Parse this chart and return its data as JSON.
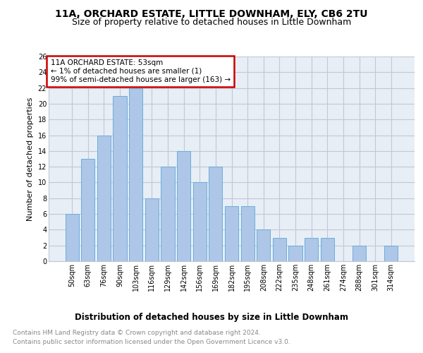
{
  "title": "11A, ORCHARD ESTATE, LITTLE DOWNHAM, ELY, CB6 2TU",
  "subtitle": "Size of property relative to detached houses in Little Downham",
  "xlabel": "Distribution of detached houses by size in Little Downham",
  "ylabel": "Number of detached properties",
  "bar_labels": [
    "50sqm",
    "63sqm",
    "76sqm",
    "90sqm",
    "103sqm",
    "116sqm",
    "129sqm",
    "142sqm",
    "156sqm",
    "169sqm",
    "182sqm",
    "195sqm",
    "208sqm",
    "222sqm",
    "235sqm",
    "248sqm",
    "261sqm",
    "274sqm",
    "288sqm",
    "301sqm",
    "314sqm"
  ],
  "bar_values": [
    6,
    13,
    16,
    21,
    22,
    8,
    12,
    14,
    10,
    12,
    7,
    7,
    4,
    3,
    2,
    3,
    3,
    0,
    2,
    0,
    2
  ],
  "bar_color": "#aec6e8",
  "bar_edge_color": "#6baed6",
  "annotation_box_color": "#cc0000",
  "annotation_text": "11A ORCHARD ESTATE: 53sqm\n← 1% of detached houses are smaller (1)\n99% of semi-detached houses are larger (163) →",
  "ylim": [
    0,
    26
  ],
  "yticks": [
    0,
    2,
    4,
    6,
    8,
    10,
    12,
    14,
    16,
    18,
    20,
    22,
    24,
    26
  ],
  "grid_color": "#c0c8d8",
  "bg_color": "#e8eef5",
  "footer_line1": "Contains HM Land Registry data © Crown copyright and database right 2024.",
  "footer_line2": "Contains public sector information licensed under the Open Government Licence v3.0.",
  "title_fontsize": 10,
  "subtitle_fontsize": 9,
  "ylabel_fontsize": 8,
  "xlabel_fontsize": 8.5,
  "tick_fontsize": 7,
  "annotation_fontsize": 7.5,
  "footer_fontsize": 6.5
}
